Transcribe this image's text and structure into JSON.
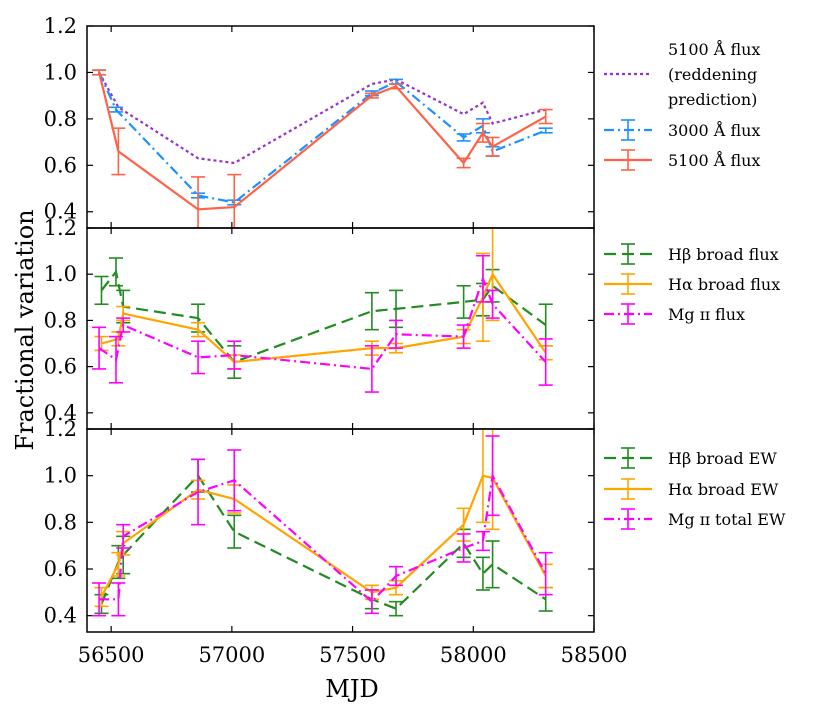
{
  "chart_data": {
    "type": "line",
    "xlabel": "MJD",
    "ylabel": "Fractional variation",
    "xlim": [
      56400,
      58500
    ],
    "x_ticks": [
      56500,
      57000,
      57500,
      58000,
      58500
    ],
    "x_tick_labels": [
      "56500",
      "57000",
      "57500",
      "58000",
      "58500"
    ],
    "panels": [
      {
        "id": "top",
        "ylim": [
          0.33,
          1.2
        ],
        "y_ticks": [
          0.4,
          0.6,
          0.8,
          1.0,
          1.2
        ],
        "y_tick_labels": [
          "0.4",
          "0.6",
          "0.8",
          "1.0",
          "1.2"
        ],
        "series": [
          {
            "name": "reddening",
            "legend": [
              "5100 Å flux",
              "(reddening",
              "prediction)"
            ],
            "color": "#9932cc",
            "style": "dotted",
            "x": [
              56450,
              56530,
              56860,
              57010,
              57580,
              57680,
              57960,
              58040,
              58080,
              58300
            ],
            "y": [
              1.0,
              0.85,
              0.63,
              0.61,
              0.95,
              0.97,
              0.82,
              0.87,
              0.78,
              0.84
            ],
            "err": null
          },
          {
            "name": "flux3000",
            "legend": [
              "3000 Å flux"
            ],
            "color": "#1e90ff",
            "style": "dashdot",
            "x": [
              56450,
              56520,
              56860,
              57010,
              57580,
              57680,
              57960,
              58040,
              58080,
              58300
            ],
            "y": [
              1.0,
              0.84,
              0.47,
              0.44,
              0.91,
              0.96,
              0.72,
              0.77,
              0.66,
              0.75
            ],
            "err": [
              0.01,
              0.01,
              0.01,
              0.01,
              0.01,
              0.01,
              0.015,
              0.03,
              0.02,
              0.01
            ]
          },
          {
            "name": "flux5100",
            "legend": [
              "5100 Å flux"
            ],
            "color": "#ff6347",
            "style": "solid",
            "x": [
              56450,
              56530,
              56860,
              57010,
              57580,
              57680,
              57960,
              58040,
              58080,
              58300
            ],
            "y": [
              1.0,
              0.66,
              0.41,
              0.42,
              0.9,
              0.94,
              0.61,
              0.74,
              0.68,
              0.81
            ],
            "err": [
              0.01,
              0.1,
              0.14,
              0.14,
              0.01,
              0.01,
              0.02,
              0.04,
              0.04,
              0.03
            ]
          }
        ]
      },
      {
        "id": "middle",
        "ylim": [
          0.33,
          1.2
        ],
        "y_ticks": [
          0.4,
          0.6,
          0.8,
          1.0,
          1.2
        ],
        "y_tick_labels": [
          "0.4",
          "0.6",
          "0.8",
          "1.0",
          "1.2"
        ],
        "series": [
          {
            "name": "hb_flux",
            "legend": [
              "Hβ broad flux"
            ],
            "color": "#228b22",
            "style": "dashed",
            "x": [
              56460,
              56520,
              56550,
              56860,
              57010,
              57580,
              57680,
              57960,
              58040,
              58080,
              58300
            ],
            "y": [
              0.93,
              1.01,
              0.86,
              0.81,
              0.62,
              0.84,
              0.85,
              0.88,
              0.89,
              0.95,
              0.78
            ],
            "err": [
              0.06,
              0.06,
              0.07,
              0.06,
              0.07,
              0.08,
              0.08,
              0.07,
              0.07,
              0.07,
              0.09
            ]
          },
          {
            "name": "ha_flux",
            "legend": [
              "Hα broad flux"
            ],
            "color": "#ffa500",
            "style": "solid",
            "x": [
              56460,
              56530,
              56550,
              56860,
              57010,
              57580,
              57680,
              57960,
              58040,
              58080,
              58300
            ],
            "y": [
              0.7,
              0.72,
              0.83,
              0.76,
              0.62,
              0.68,
              0.68,
              0.73,
              0.9,
              1.0,
              0.66
            ],
            "err": [
              0.03,
              0.03,
              0.03,
              0.03,
              0.03,
              0.03,
              0.02,
              0.03,
              0.19,
              0.2,
              0.03
            ]
          },
          {
            "name": "mg_flux",
            "legend": [
              "Mg ɪɪ flux"
            ],
            "color": "#ff00ff",
            "style": "dashdot",
            "x": [
              56450,
              56520,
              56550,
              56860,
              57010,
              57580,
              57680,
              57960,
              58040,
              58080,
              58300
            ],
            "y": [
              0.68,
              0.63,
              0.78,
              0.64,
              0.65,
              0.59,
              0.74,
              0.73,
              0.98,
              0.87,
              0.62
            ],
            "err": [
              0.09,
              0.1,
              0.03,
              0.07,
              0.06,
              0.1,
              0.06,
              0.05,
              0.1,
              0.06,
              0.1
            ]
          }
        ]
      },
      {
        "id": "bottom",
        "ylim": [
          0.33,
          1.2
        ],
        "y_ticks": [
          0.4,
          0.6,
          0.8,
          1.0,
          1.2
        ],
        "y_tick_labels": [
          "0.4",
          "0.6",
          "0.8",
          "1.0",
          "1.2"
        ],
        "series": [
          {
            "name": "hb_ew",
            "legend": [
              "Hβ broad EW"
            ],
            "color": "#228b22",
            "style": "dashed",
            "x": [
              56460,
              56530,
              56550,
              56860,
              57010,
              57580,
              57680,
              57960,
              58040,
              58080,
              58300
            ],
            "y": [
              0.45,
              0.63,
              0.66,
              1.0,
              0.76,
              0.47,
              0.43,
              0.71,
              0.58,
              0.62,
              0.47
            ],
            "err": [
              0.04,
              0.07,
              0.08,
              0.07,
              0.07,
              0.04,
              0.03,
              0.06,
              0.07,
              0.1,
              0.05
            ]
          },
          {
            "name": "ha_ew",
            "legend": [
              "Hα broad EW"
            ],
            "color": "#ffa500",
            "style": "solid",
            "x": [
              56460,
              56530,
              56550,
              56860,
              57010,
              57580,
              57680,
              57960,
              58040,
              58080,
              58300
            ],
            "y": [
              0.48,
              0.62,
              0.71,
              0.94,
              0.9,
              0.5,
              0.52,
              0.79,
              1.0,
              0.99,
              0.57
            ],
            "err": [
              0.04,
              0.05,
              0.05,
              0.04,
              0.06,
              0.03,
              0.03,
              0.07,
              0.2,
              0.22,
              0.05
            ]
          },
          {
            "name": "mg_ew",
            "legend": [
              "Mg ɪɪ total EW"
            ],
            "color": "#ff00ff",
            "style": "dashdot",
            "x": [
              56450,
              56530,
              56550,
              56860,
              57010,
              57580,
              57680,
              57960,
              58040,
              58080,
              58300
            ],
            "y": [
              0.47,
              0.47,
              0.74,
              0.93,
              0.98,
              0.46,
              0.57,
              0.69,
              0.72,
              1.0,
              0.58
            ],
            "err": [
              0.07,
              0.07,
              0.05,
              0.14,
              0.13,
              0.05,
              0.04,
              0.06,
              0.04,
              0.17,
              0.09
            ]
          }
        ]
      }
    ]
  }
}
